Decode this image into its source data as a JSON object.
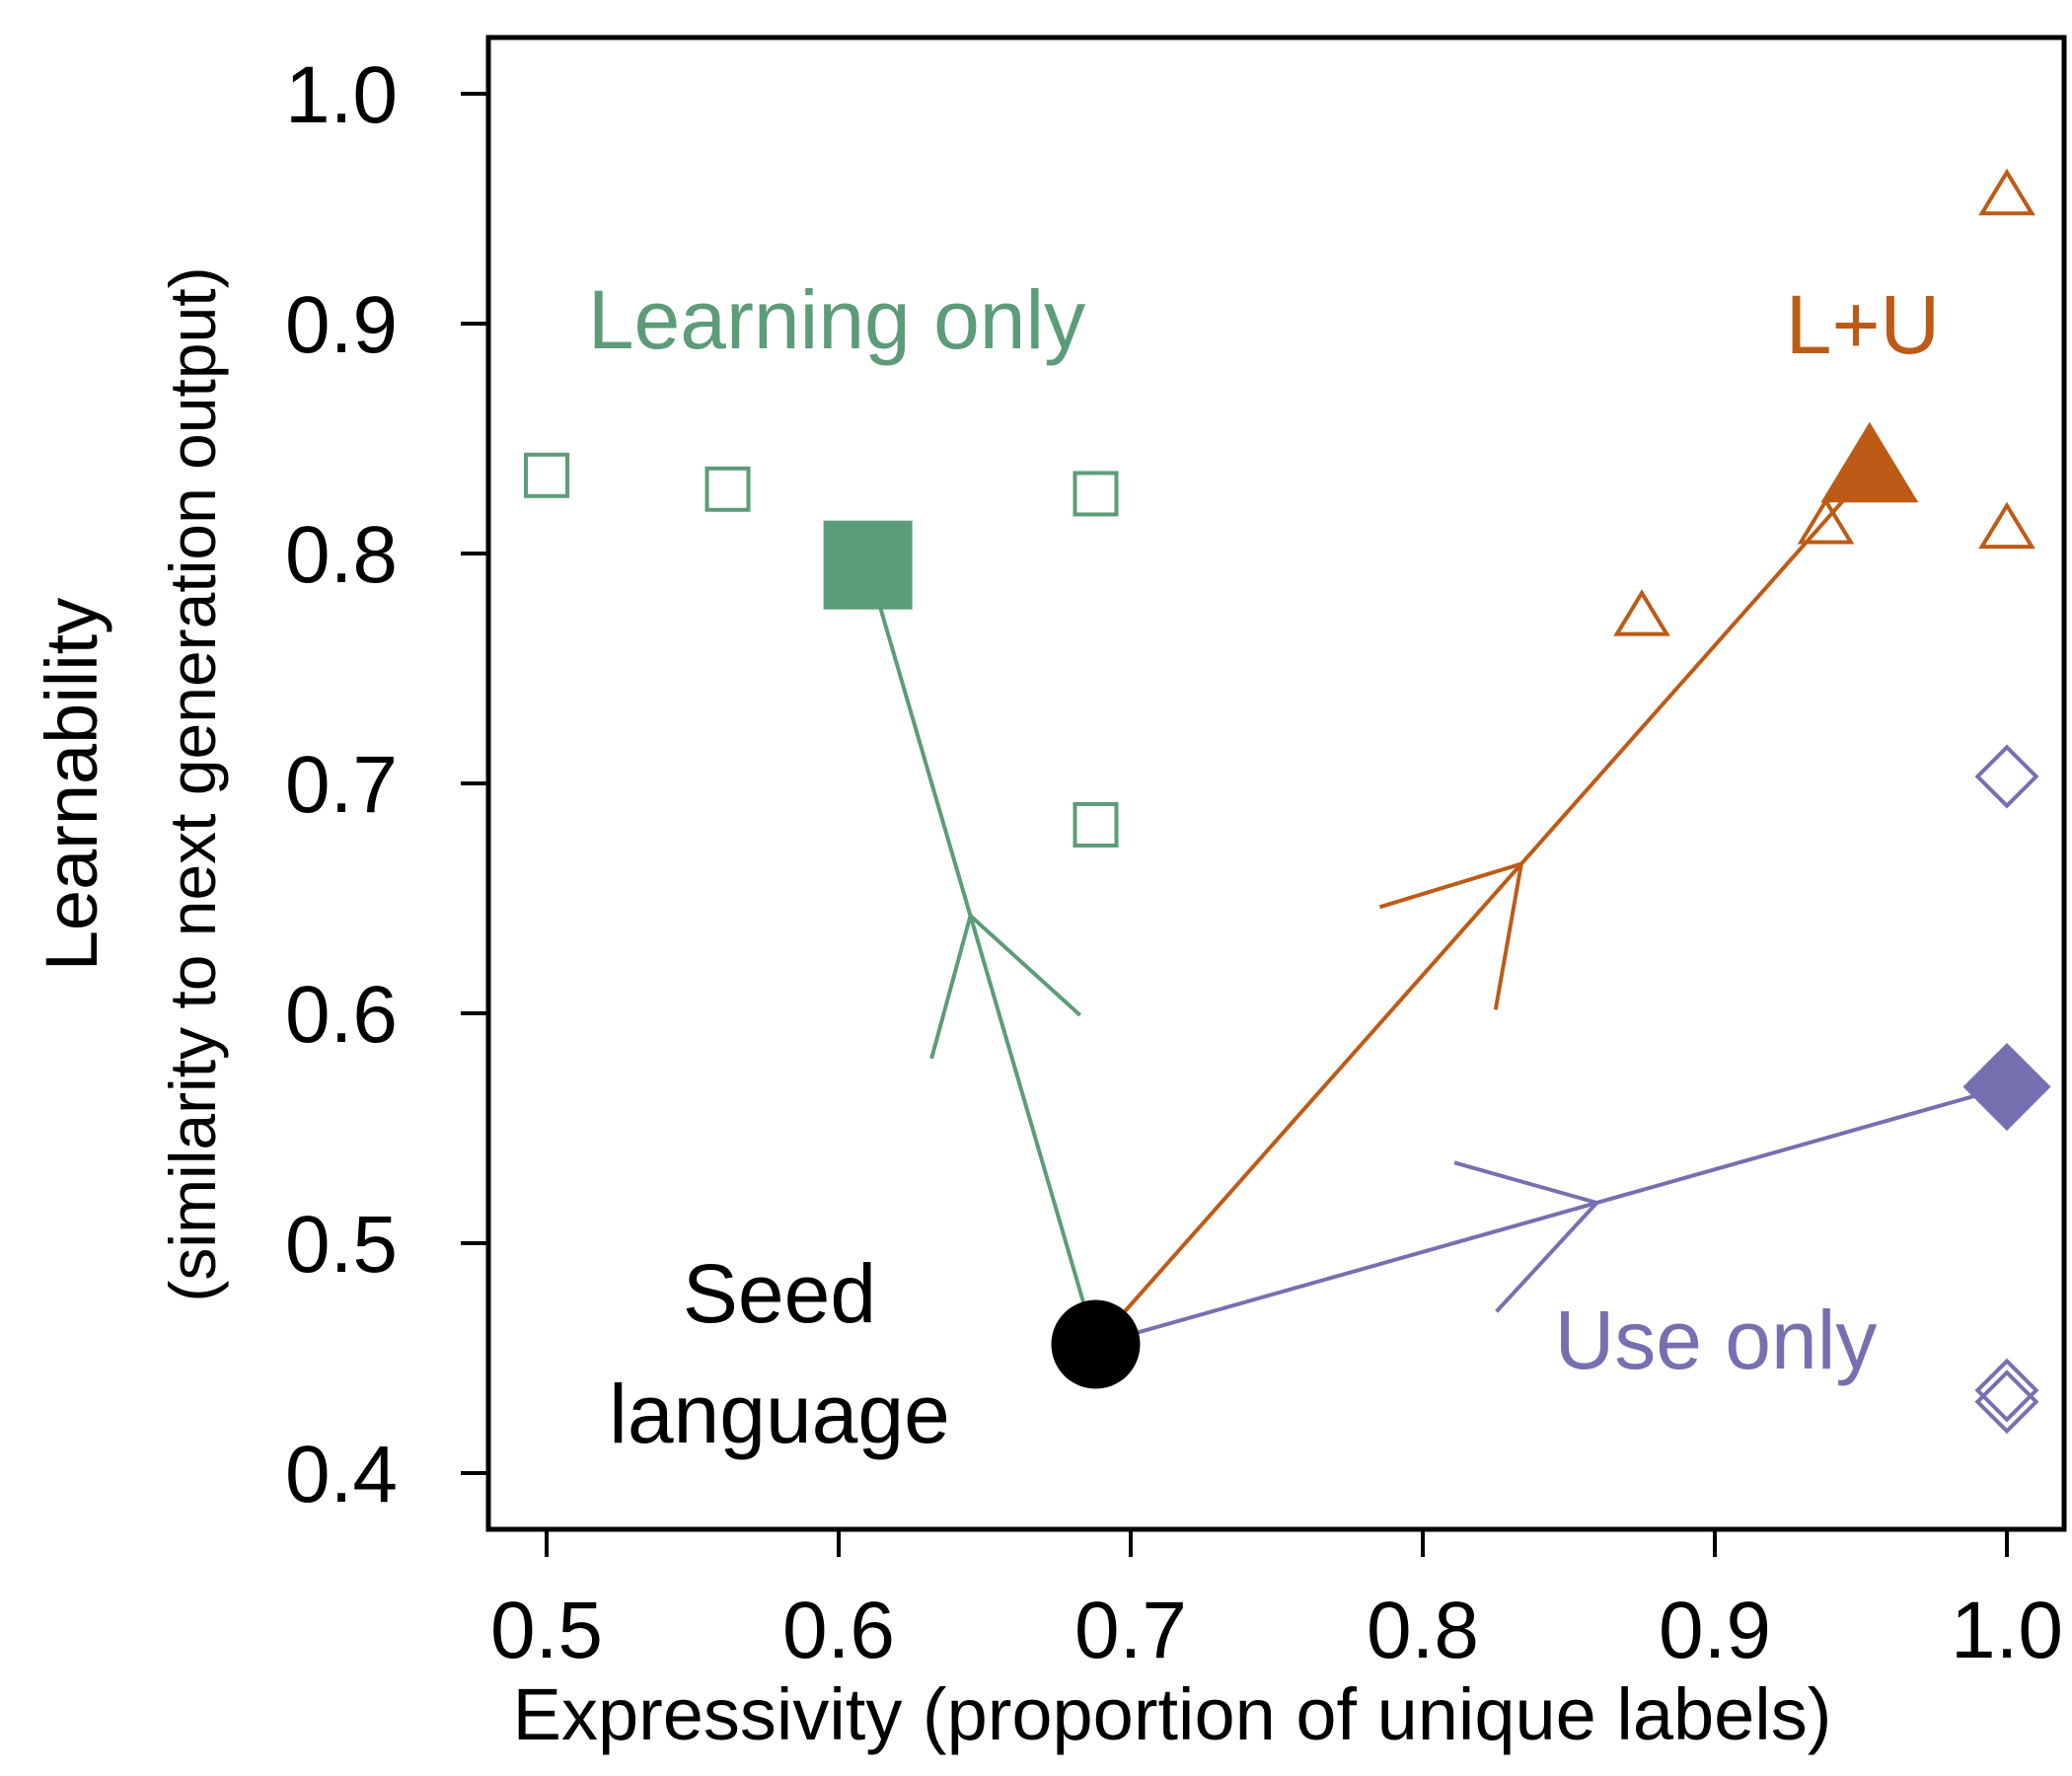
{
  "chart_data": {
    "type": "scatter",
    "xlabel": "Expressivity (proportion of unique labels)",
    "ylabel_line1": "Learnability",
    "ylabel_line2": "(similarity to next generation output)",
    "xlim": [
      0.48,
      1.02
    ],
    "ylim": [
      0.38,
      1.03
    ],
    "xticks": [
      "0.5",
      "0.6",
      "0.7",
      "0.8",
      "0.9",
      "1.0"
    ],
    "yticks": [
      "0.4",
      "0.5",
      "0.6",
      "0.7",
      "0.8",
      "0.9",
      "1.0"
    ],
    "grid": false,
    "annotations": {
      "learning_only": "Learning only",
      "lu": "L+U",
      "use_only": "Use only",
      "seed_line1": "Seed",
      "seed_line2": "language"
    },
    "colors": {
      "learning_only": "#5c9c78",
      "lu": "#bd5b16",
      "use_only": "#7670b0",
      "seed": "#000000"
    },
    "seed": {
      "x": 0.688,
      "y": 0.456
    },
    "series": [
      {
        "name": "Learning only",
        "marker": "square",
        "chains": [
          {
            "x": 0.5,
            "y": 0.834
          },
          {
            "x": 0.562,
            "y": 0.828
          },
          {
            "x": 0.688,
            "y": 0.826
          },
          {
            "x": 0.688,
            "y": 0.682
          }
        ],
        "mean": {
          "x": 0.61,
          "y": 0.795
        }
      },
      {
        "name": "L+U",
        "marker": "triangle",
        "chains": [
          {
            "x": 1.0,
            "y": 0.955
          },
          {
            "x": 1.0,
            "y": 0.81
          },
          {
            "x": 0.938,
            "y": 0.812
          },
          {
            "x": 0.875,
            "y": 0.772
          }
        ],
        "mean": {
          "x": 0.953,
          "y": 0.836
        }
      },
      {
        "name": "Use only",
        "marker": "diamond",
        "chains": [
          {
            "x": 1.0,
            "y": 0.703
          },
          {
            "x": 1.0,
            "y": 0.436
          },
          {
            "x": 1.0,
            "y": 0.431
          }
        ],
        "mean": {
          "x": 1.0,
          "y": 0.568
        }
      }
    ]
  }
}
